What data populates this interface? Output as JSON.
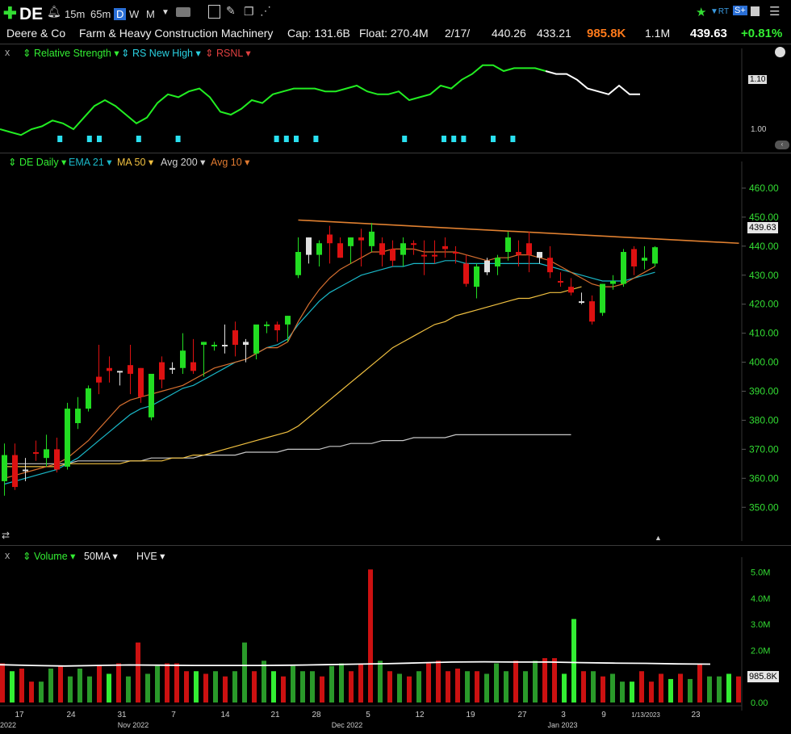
{
  "topbar": {
    "plus_icon": "plus-icon",
    "symbol": "DE",
    "timeframes": [
      "15m",
      "65m",
      "D",
      "W",
      "M"
    ],
    "active_timeframe": "D"
  },
  "info": {
    "company": "Deere & Co",
    "industry": "Farm & Heavy Construction Machinery",
    "cap": "Cap: 131.6B",
    "float": "Float: 270.4M",
    "date": "2/17/",
    "high": "440.26",
    "low": "433.21",
    "volume": "985.8K",
    "avg_volume": "1.1M",
    "price": "439.63",
    "change": "+0.81%"
  },
  "rs_pane": {
    "close_x": "x",
    "items": [
      "Relative Strength",
      "RS New High",
      "RSNL"
    ],
    "axis": [
      "1.10",
      "1.00"
    ]
  },
  "price_pane": {
    "items": [
      "DE Daily",
      "EMA 21",
      "MA 50",
      "Avg 200",
      "Avg 10"
    ],
    "last_price_tag": "439.63"
  },
  "volume_pane": {
    "close_x": "x",
    "items": [
      "Volume",
      "50MA",
      "HVE"
    ],
    "last_volume_tag": "985.8K"
  },
  "colors": {
    "up": "#22dd22",
    "down": "#dd1111",
    "neutral": "#e0e0e0",
    "ema21": "#1ab8c8",
    "ma50": "#f0c040",
    "avg200": "#c8c8c8",
    "avg10": "#d87030",
    "trend": "#e08030",
    "rs": "#22ee22"
  },
  "chart_data": [
    {
      "type": "candlestick",
      "title": "DE Daily",
      "ylim": [
        342,
        465
      ],
      "yticks": [
        "460.00",
        "450.00",
        "440.00",
        "430.00",
        "420.00",
        "410.00",
        "400.00",
        "390.00",
        "380.00",
        "370.00",
        "360.00",
        "350.00"
      ],
      "ytick_values": [
        460,
        450,
        440,
        430,
        420,
        410,
        400,
        390,
        380,
        370,
        360,
        350
      ],
      "x_ticks": [
        "17",
        "24",
        "31",
        "7",
        "14",
        "21",
        "28",
        "5",
        "12",
        "19",
        "27",
        "3",
        "9",
        "1/13/2023",
        "23"
      ],
      "x_months": [
        "2022",
        "Nov 2022",
        "Dec 2022",
        "Jan 2023"
      ],
      "candles": [
        {
          "o": 359,
          "h": 372,
          "l": 354,
          "c": 368,
          "d": "up"
        },
        {
          "o": 368,
          "h": 372,
          "l": 356,
          "c": 357,
          "d": "down"
        },
        {
          "o": 363,
          "h": 367,
          "l": 359,
          "c": 363,
          "d": "neutral"
        },
        {
          "o": 369,
          "h": 373,
          "l": 366,
          "c": 369,
          "d": "down"
        },
        {
          "o": 367,
          "h": 375,
          "l": 364,
          "c": 370,
          "d": "up"
        },
        {
          "o": 370,
          "h": 374,
          "l": 362,
          "c": 363,
          "d": "down"
        },
        {
          "o": 364,
          "h": 386,
          "l": 363,
          "c": 384,
          "d": "up"
        },
        {
          "o": 379,
          "h": 388,
          "l": 377,
          "c": 384,
          "d": "up"
        },
        {
          "o": 384,
          "h": 392,
          "l": 383,
          "c": 391,
          "d": "up"
        },
        {
          "o": 393,
          "h": 406,
          "l": 389,
          "c": 395,
          "d": "down"
        },
        {
          "o": 397,
          "h": 402,
          "l": 393,
          "c": 398,
          "d": "down"
        },
        {
          "o": 397,
          "h": 397,
          "l": 392,
          "c": 397,
          "d": "neutral"
        },
        {
          "o": 399,
          "h": 406,
          "l": 389,
          "c": 396,
          "d": "down"
        },
        {
          "o": 398,
          "h": 398,
          "l": 386,
          "c": 388,
          "d": "down"
        },
        {
          "o": 381,
          "h": 395,
          "l": 380,
          "c": 396,
          "d": "up"
        },
        {
          "o": 400,
          "h": 402,
          "l": 391,
          "c": 394,
          "d": "down"
        },
        {
          "o": 398,
          "h": 400,
          "l": 396,
          "c": 398,
          "d": "neutral"
        },
        {
          "o": 398,
          "h": 410,
          "l": 396,
          "c": 404,
          "d": "up"
        },
        {
          "o": 400,
          "h": 408,
          "l": 396,
          "c": 397,
          "d": "down"
        },
        {
          "o": 407,
          "h": 407,
          "l": 395,
          "c": 406,
          "d": "up"
        },
        {
          "o": 406,
          "h": 407,
          "l": 404,
          "c": 406,
          "d": "up"
        },
        {
          "o": 406,
          "h": 413,
          "l": 403,
          "c": 406,
          "d": "neutral"
        },
        {
          "o": 411,
          "h": 414,
          "l": 402,
          "c": 406,
          "d": "down"
        },
        {
          "o": 406,
          "h": 408,
          "l": 400,
          "c": 407,
          "d": "neutral"
        },
        {
          "o": 403,
          "h": 412,
          "l": 401,
          "c": 413,
          "d": "up"
        },
        {
          "o": 413,
          "h": 414,
          "l": 410,
          "c": 413,
          "d": "up"
        },
        {
          "o": 413,
          "h": 414,
          "l": 407,
          "c": 411,
          "d": "down"
        },
        {
          "o": 413,
          "h": 416,
          "l": 407,
          "c": 416,
          "d": "up"
        },
        {
          "o": 430,
          "h": 443,
          "l": 429,
          "c": 438,
          "d": "up"
        },
        {
          "o": 437,
          "h": 443,
          "l": 434,
          "c": 443,
          "d": "neutral"
        },
        {
          "o": 437,
          "h": 442,
          "l": 433,
          "c": 441,
          "d": "up"
        },
        {
          "o": 444,
          "h": 447,
          "l": 434,
          "c": 441,
          "d": "down"
        },
        {
          "o": 441,
          "h": 443,
          "l": 436,
          "c": 436,
          "d": "down"
        },
        {
          "o": 440,
          "h": 443,
          "l": 434,
          "c": 443,
          "d": "up"
        },
        {
          "o": 442,
          "h": 446,
          "l": 433,
          "c": 443,
          "d": "down"
        },
        {
          "o": 440,
          "h": 448,
          "l": 438,
          "c": 445,
          "d": "up"
        },
        {
          "o": 441,
          "h": 443,
          "l": 433,
          "c": 437,
          "d": "down"
        },
        {
          "o": 439,
          "h": 442,
          "l": 433,
          "c": 435,
          "d": "down"
        },
        {
          "o": 437,
          "h": 443,
          "l": 433,
          "c": 441,
          "d": "up"
        },
        {
          "o": 441,
          "h": 442,
          "l": 437,
          "c": 441,
          "d": "down"
        },
        {
          "o": 437,
          "h": 442,
          "l": 430,
          "c": 437,
          "d": "down"
        },
        {
          "o": 437,
          "h": 442,
          "l": 434,
          "c": 437,
          "d": "down"
        },
        {
          "o": 440,
          "h": 443,
          "l": 436,
          "c": 439,
          "d": "down"
        },
        {
          "o": 438,
          "h": 440,
          "l": 434,
          "c": 438,
          "d": "down"
        },
        {
          "o": 434,
          "h": 437,
          "l": 426,
          "c": 427,
          "d": "down"
        },
        {
          "o": 426,
          "h": 434,
          "l": 422,
          "c": 433,
          "d": "up"
        },
        {
          "o": 431,
          "h": 436,
          "l": 430,
          "c": 435,
          "d": "neutral"
        },
        {
          "o": 433,
          "h": 437,
          "l": 430,
          "c": 436,
          "d": "up"
        },
        {
          "o": 438,
          "h": 445,
          "l": 435,
          "c": 443,
          "d": "up"
        },
        {
          "o": 438,
          "h": 442,
          "l": 433,
          "c": 437,
          "d": "down"
        },
        {
          "o": 441,
          "h": 445,
          "l": 431,
          "c": 437,
          "d": "down"
        },
        {
          "o": 436,
          "h": 438,
          "l": 434,
          "c": 438,
          "d": "neutral"
        },
        {
          "o": 436,
          "h": 440,
          "l": 429,
          "c": 431,
          "d": "down"
        },
        {
          "o": 428,
          "h": 431,
          "l": 426,
          "c": 428,
          "d": "down"
        },
        {
          "o": 426,
          "h": 429,
          "l": 423,
          "c": 424,
          "d": "down"
        },
        {
          "o": 421,
          "h": 424,
          "l": 420,
          "c": 421,
          "d": "neutral"
        },
        {
          "o": 421,
          "h": 423,
          "l": 413,
          "c": 414,
          "d": "down"
        },
        {
          "o": 417,
          "h": 427,
          "l": 416,
          "c": 427,
          "d": "up"
        },
        {
          "o": 427,
          "h": 430,
          "l": 425,
          "c": 428,
          "d": "up"
        },
        {
          "o": 438,
          "h": 439,
          "l": 426,
          "c": 427,
          "d": "up"
        },
        {
          "o": 433,
          "h": 440,
          "l": 430,
          "c": 439,
          "d": "down"
        },
        {
          "o": 435,
          "h": 440,
          "l": 432,
          "c": 436,
          "d": "up"
        },
        {
          "o": 434,
          "h": 440,
          "l": 433,
          "c": 439.63,
          "d": "up"
        }
      ],
      "ema21": [
        358,
        359,
        360,
        361,
        362,
        363,
        365,
        367,
        370,
        373,
        376,
        379,
        382,
        384,
        385,
        387,
        389,
        391,
        392,
        394,
        396,
        398,
        400,
        401,
        403,
        405,
        406,
        408,
        413,
        417,
        421,
        424,
        426,
        428,
        430,
        431,
        432,
        433,
        433,
        434,
        434,
        434,
        435,
        435,
        434,
        434,
        434,
        434,
        434,
        434,
        434,
        434,
        433,
        432,
        431,
        430,
        429,
        428,
        428,
        428,
        429,
        430,
        431
      ],
      "avg10": [
        360,
        361,
        362,
        363,
        364,
        365,
        367,
        370,
        373,
        377,
        381,
        385,
        387,
        388,
        389,
        390,
        391,
        392,
        394,
        396,
        398,
        399,
        400,
        401,
        403,
        405,
        405,
        407,
        414,
        420,
        425,
        429,
        432,
        434,
        436,
        438,
        438,
        439,
        439,
        439,
        438,
        438,
        438,
        438,
        437,
        436,
        435,
        436,
        436,
        437,
        437,
        436,
        435,
        433,
        431,
        429,
        427,
        426,
        426,
        427,
        429,
        431,
        433
      ],
      "ma50": [
        364,
        364,
        364,
        364,
        364,
        364,
        365,
        365,
        365,
        365,
        365,
        365,
        366,
        366,
        366,
        366,
        367,
        367,
        368,
        368,
        369,
        370,
        371,
        372,
        373,
        374,
        375,
        376,
        378,
        381,
        384,
        387,
        390,
        393,
        396,
        399,
        402,
        405,
        407,
        409,
        411,
        413,
        414,
        416,
        417,
        418,
        419,
        420,
        421,
        422,
        422,
        423,
        424,
        424,
        425,
        426
      ],
      "avg200": [
        365,
        365,
        365,
        365,
        365,
        365,
        365,
        366,
        366,
        366,
        366,
        366,
        366,
        366,
        367,
        367,
        367,
        367,
        367,
        368,
        368,
        368,
        368,
        369,
        369,
        369,
        369,
        370,
        370,
        370,
        370,
        371,
        371,
        372,
        372,
        372,
        373,
        373,
        373,
        374,
        374,
        374,
        374,
        375,
        375,
        375,
        375,
        375,
        375,
        375,
        375,
        375,
        375,
        375,
        375
      ],
      "trendline": {
        "from_bar": 28,
        "from": 449,
        "to_bar": 70,
        "to": 441
      }
    },
    {
      "type": "bar",
      "title": "Volume",
      "ylim": [
        0,
        5.2
      ],
      "yticks": [
        "5.0M",
        "4.0M",
        "3.0M",
        "2.0M",
        "0.00"
      ],
      "ytick_values": [
        5,
        4,
        3,
        2,
        0
      ],
      "values": [
        1.5,
        1.2,
        1.3,
        0.8,
        0.8,
        1.3,
        1.4,
        1.0,
        1.3,
        1.0,
        1.4,
        1.1,
        1.5,
        1.0,
        2.3,
        1.1,
        1.4,
        1.5,
        1.5,
        1.2,
        1.2,
        1.1,
        1.2,
        1.0,
        1.2,
        2.3,
        1.2,
        1.6,
        1.2,
        1.0,
        1.4,
        1.2,
        1.2,
        1.0,
        1.4,
        1.5,
        1.2,
        1.5,
        5.1,
        1.6,
        1.2,
        1.1,
        1.0,
        1.2,
        1.5,
        1.6,
        1.2,
        1.3,
        1.2,
        1.2,
        1.1,
        1.5,
        1.2,
        1.6,
        1.2,
        1.6,
        1.7,
        1.7,
        1.1,
        3.2,
        1.2,
        1.2,
        1.0,
        1.1,
        0.8,
        0.8,
        1.2,
        0.8,
        1.1,
        0.9,
        1.1,
        0.9,
        1.5,
        1.0,
        1.0,
        1.1,
        1.0
      ],
      "dirs": "duddggdgggdudgdggdddudgdggdgudgggdggdddgdgdgddddgdgggdggdduudgdggudddudgdggud",
      "ma50": [
        1.45,
        1.42,
        1.4,
        1.42,
        1.44,
        1.43,
        1.42,
        1.42,
        1.42,
        1.43,
        1.45,
        1.47,
        1.49,
        1.52,
        1.55,
        1.56,
        1.55,
        1.55,
        1.53,
        1.51,
        1.5,
        1.48,
        1.47
      ]
    },
    {
      "type": "line",
      "title": "Relative Strength",
      "values": [
        1.0,
        0.99,
        0.98,
        1.0,
        1.01,
        1.03,
        1.02,
        1.0,
        1.04,
        1.08,
        1.1,
        1.08,
        1.05,
        1.02,
        1.04,
        1.09,
        1.12,
        1.11,
        1.13,
        1.14,
        1.11,
        1.06,
        1.05,
        1.07,
        1.1,
        1.09,
        1.12,
        1.13,
        1.14,
        1.14,
        1.14,
        1.13,
        1.13,
        1.14,
        1.15,
        1.13,
        1.12,
        1.12,
        1.13,
        1.1,
        1.11,
        1.12,
        1.15,
        1.14,
        1.17,
        1.19,
        1.22,
        1.22,
        1.2,
        1.21,
        1.21,
        1.21,
        1.2,
        1.19,
        1.19,
        1.17,
        1.14,
        1.13,
        1.12,
        1.15,
        1.12,
        1.12
      ],
      "rs_new_high_bars": [
        6,
        9,
        10,
        14,
        18,
        28,
        29,
        30,
        32,
        41,
        45,
        46,
        47,
        50,
        52
      ]
    }
  ]
}
